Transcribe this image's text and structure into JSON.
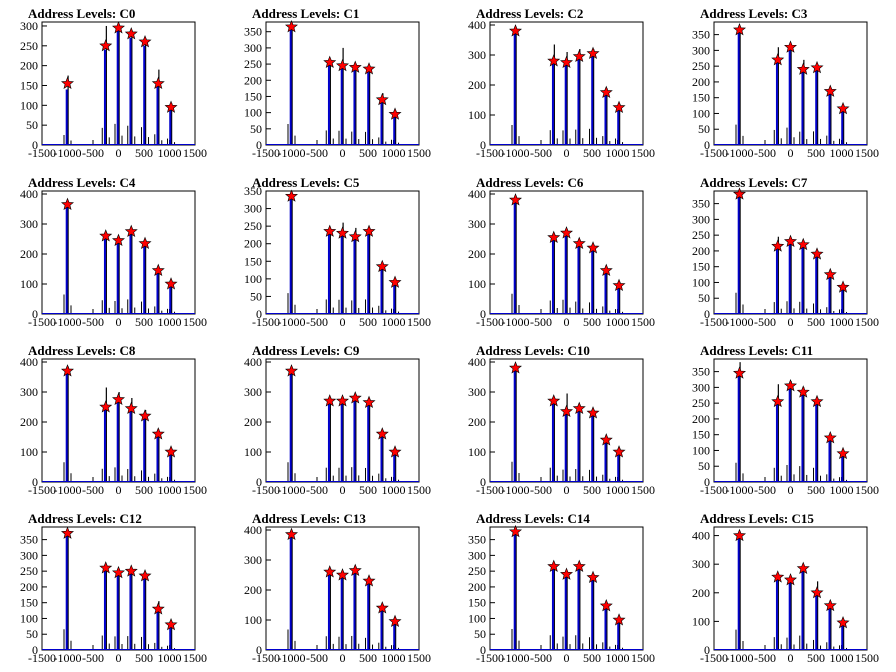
{
  "chart_data": [
    {
      "title": "Address Levels: C0",
      "type": "bar",
      "xlim": [
        -1500,
        1500
      ],
      "ylim": [
        0,
        310
      ],
      "yticks": [
        0,
        50,
        100,
        150,
        200,
        250,
        300
      ],
      "xticks": [
        -1500,
        -1000,
        -500,
        0,
        500,
        1000,
        1500
      ],
      "peaks": [
        {
          "x": -1000,
          "y": 155
        },
        {
          "x": -250,
          "y": 250
        },
        {
          "x": 0,
          "y": 295
        },
        {
          "x": 250,
          "y": 280
        },
        {
          "x": 520,
          "y": 260
        },
        {
          "x": 780,
          "y": 155
        },
        {
          "x": 1030,
          "y": 95
        }
      ],
      "series": [
        {
          "values": [
            175,
            300,
            300,
            285,
            270,
            190,
            105
          ]
        },
        {
          "values": [
            140,
            240,
            295,
            270,
            250,
            150,
            90
          ]
        }
      ]
    },
    {
      "title": "Address Levels: C1",
      "type": "bar",
      "xlim": [
        -1500,
        1500
      ],
      "ylim": [
        0,
        380
      ],
      "yticks": [
        0,
        50,
        100,
        150,
        200,
        250,
        300,
        350
      ],
      "xticks": [
        -1500,
        -1000,
        -500,
        0,
        500,
        1000,
        1500
      ],
      "peaks": [
        {
          "x": -1000,
          "y": 365
        },
        {
          "x": -250,
          "y": 255
        },
        {
          "x": 0,
          "y": 245
        },
        {
          "x": 250,
          "y": 240
        },
        {
          "x": 520,
          "y": 235
        },
        {
          "x": 780,
          "y": 140
        },
        {
          "x": 1030,
          "y": 95
        }
      ],
      "series": [
        {
          "values": [
            370,
            265,
            300,
            250,
            245,
            160,
            105
          ]
        },
        {
          "values": [
            360,
            250,
            245,
            230,
            225,
            130,
            90
          ]
        }
      ]
    },
    {
      "title": "Address Levels: C2",
      "type": "bar",
      "xlim": [
        -1500,
        1500
      ],
      "ylim": [
        0,
        410
      ],
      "yticks": [
        0,
        100,
        200,
        300,
        400
      ],
      "xticks": [
        -1500,
        -1000,
        -500,
        0,
        500,
        1000,
        1500
      ],
      "peaks": [
        {
          "x": -1000,
          "y": 380
        },
        {
          "x": -250,
          "y": 280
        },
        {
          "x": 0,
          "y": 275
        },
        {
          "x": 250,
          "y": 295
        },
        {
          "x": 520,
          "y": 305
        },
        {
          "x": 780,
          "y": 175
        },
        {
          "x": 1030,
          "y": 125
        }
      ],
      "series": [
        {
          "values": [
            390,
            335,
            310,
            320,
            320,
            190,
            135
          ]
        },
        {
          "values": [
            370,
            275,
            270,
            285,
            300,
            165,
            120
          ]
        }
      ]
    },
    {
      "title": "Address Levels: C3",
      "type": "bar",
      "xlim": [
        -1500,
        1500
      ],
      "ylim": [
        0,
        390
      ],
      "yticks": [
        0,
        50,
        100,
        150,
        200,
        250,
        300,
        350
      ],
      "xticks": [
        -1500,
        -1000,
        -500,
        0,
        500,
        1000,
        1500
      ],
      "peaks": [
        {
          "x": -1000,
          "y": 365
        },
        {
          "x": -250,
          "y": 270
        },
        {
          "x": 0,
          "y": 310
        },
        {
          "x": 250,
          "y": 240
        },
        {
          "x": 520,
          "y": 245
        },
        {
          "x": 780,
          "y": 170
        },
        {
          "x": 1030,
          "y": 115
        }
      ],
      "series": [
        {
          "values": [
            375,
            310,
            320,
            270,
            255,
            180,
            125
          ]
        },
        {
          "values": [
            360,
            265,
            305,
            235,
            240,
            165,
            110
          ]
        }
      ]
    },
    {
      "title": "Address Levels: C4",
      "type": "bar",
      "xlim": [
        -1500,
        1500
      ],
      "ylim": [
        0,
        410
      ],
      "yticks": [
        0,
        100,
        200,
        300,
        400
      ],
      "xticks": [
        -1500,
        -1000,
        -500,
        0,
        500,
        1000,
        1500
      ],
      "peaks": [
        {
          "x": -1000,
          "y": 365
        },
        {
          "x": -250,
          "y": 260
        },
        {
          "x": 0,
          "y": 245
        },
        {
          "x": 250,
          "y": 275
        },
        {
          "x": 520,
          "y": 235
        },
        {
          "x": 780,
          "y": 145
        },
        {
          "x": 1030,
          "y": 100
        }
      ],
      "series": [
        {
          "values": [
            375,
            270,
            255,
            285,
            245,
            155,
            110
          ]
        },
        {
          "values": [
            360,
            255,
            240,
            270,
            230,
            140,
            95
          ]
        }
      ]
    },
    {
      "title": "Address Levels: C5",
      "type": "bar",
      "xlim": [
        -1500,
        1500
      ],
      "ylim": [
        0,
        350
      ],
      "yticks": [
        0,
        50,
        100,
        150,
        200,
        250,
        300,
        350
      ],
      "xticks": [
        -1500,
        -1000,
        -500,
        0,
        500,
        1000,
        1500
      ],
      "peaks": [
        {
          "x": -1000,
          "y": 335
        },
        {
          "x": -250,
          "y": 235
        },
        {
          "x": 0,
          "y": 230
        },
        {
          "x": 250,
          "y": 220
        },
        {
          "x": 520,
          "y": 235
        },
        {
          "x": 780,
          "y": 135
        },
        {
          "x": 1030,
          "y": 90
        }
      ],
      "series": [
        {
          "values": [
            345,
            245,
            260,
            245,
            245,
            145,
            100
          ]
        },
        {
          "values": [
            330,
            230,
            225,
            215,
            230,
            130,
            85
          ]
        }
      ]
    },
    {
      "title": "Address Levels: C6",
      "type": "bar",
      "xlim": [
        -1500,
        1500
      ],
      "ylim": [
        0,
        410
      ],
      "yticks": [
        0,
        100,
        200,
        300,
        400
      ],
      "xticks": [
        -1500,
        -1000,
        -500,
        0,
        500,
        1000,
        1500
      ],
      "peaks": [
        {
          "x": -1000,
          "y": 380
        },
        {
          "x": -250,
          "y": 255
        },
        {
          "x": 0,
          "y": 270
        },
        {
          "x": 250,
          "y": 235
        },
        {
          "x": 520,
          "y": 220
        },
        {
          "x": 780,
          "y": 145
        },
        {
          "x": 1030,
          "y": 95
        }
      ],
      "series": [
        {
          "values": [
            385,
            265,
            280,
            245,
            230,
            155,
            105
          ]
        },
        {
          "values": [
            375,
            250,
            265,
            230,
            215,
            140,
            90
          ]
        }
      ]
    },
    {
      "title": "Address Levels: C7",
      "type": "bar",
      "xlim": [
        -1500,
        1500
      ],
      "ylim": [
        0,
        390
      ],
      "yticks": [
        0,
        50,
        100,
        150,
        200,
        250,
        300,
        350
      ],
      "xticks": [
        -1500,
        -1000,
        -500,
        0,
        500,
        1000,
        1500
      ],
      "peaks": [
        {
          "x": -1000,
          "y": 380
        },
        {
          "x": -250,
          "y": 215
        },
        {
          "x": 0,
          "y": 230
        },
        {
          "x": 250,
          "y": 220
        },
        {
          "x": 520,
          "y": 190
        },
        {
          "x": 780,
          "y": 125
        },
        {
          "x": 1030,
          "y": 85
        }
      ],
      "series": [
        {
          "values": [
            385,
            245,
            240,
            225,
            200,
            135,
            95
          ]
        },
        {
          "values": [
            375,
            210,
            225,
            215,
            185,
            120,
            80
          ]
        }
      ]
    },
    {
      "title": "Address Levels: C8",
      "type": "bar",
      "xlim": [
        -1500,
        1500
      ],
      "ylim": [
        0,
        410
      ],
      "yticks": [
        0,
        100,
        200,
        300,
        400
      ],
      "xticks": [
        -1500,
        -1000,
        -500,
        0,
        500,
        1000,
        1500
      ],
      "peaks": [
        {
          "x": -1000,
          "y": 370
        },
        {
          "x": -250,
          "y": 250
        },
        {
          "x": 0,
          "y": 275
        },
        {
          "x": 250,
          "y": 245
        },
        {
          "x": 520,
          "y": 220
        },
        {
          "x": 780,
          "y": 160
        },
        {
          "x": 1030,
          "y": 100
        }
      ],
      "series": [
        {
          "values": [
            385,
            315,
            300,
            280,
            240,
            175,
            110
          ]
        },
        {
          "values": [
            365,
            245,
            270,
            240,
            215,
            155,
            95
          ]
        }
      ]
    },
    {
      "title": "Address Levels: C9",
      "type": "bar",
      "xlim": [
        -1500,
        1500
      ],
      "ylim": [
        0,
        410
      ],
      "yticks": [
        0,
        100,
        200,
        300,
        400
      ],
      "xticks": [
        -1500,
        -1000,
        -500,
        0,
        500,
        1000,
        1500
      ],
      "peaks": [
        {
          "x": -1000,
          "y": 370
        },
        {
          "x": -250,
          "y": 270
        },
        {
          "x": 0,
          "y": 270
        },
        {
          "x": 250,
          "y": 280
        },
        {
          "x": 520,
          "y": 265
        },
        {
          "x": 780,
          "y": 160
        },
        {
          "x": 1030,
          "y": 100
        }
      ],
      "series": [
        {
          "values": [
            375,
            280,
            280,
            290,
            275,
            170,
            110
          ]
        },
        {
          "values": [
            365,
            265,
            265,
            275,
            260,
            155,
            95
          ]
        }
      ]
    },
    {
      "title": "Address Levels: C10",
      "type": "bar",
      "xlim": [
        -1500,
        1500
      ],
      "ylim": [
        0,
        410
      ],
      "yticks": [
        0,
        100,
        200,
        300,
        400
      ],
      "xticks": [
        -1500,
        -1000,
        -500,
        0,
        500,
        1000,
        1500
      ],
      "peaks": [
        {
          "x": -1000,
          "y": 380
        },
        {
          "x": -250,
          "y": 270
        },
        {
          "x": 0,
          "y": 235
        },
        {
          "x": 250,
          "y": 245
        },
        {
          "x": 520,
          "y": 230
        },
        {
          "x": 780,
          "y": 140
        },
        {
          "x": 1030,
          "y": 100
        }
      ],
      "series": [
        {
          "values": [
            385,
            280,
            295,
            255,
            240,
            150,
            110
          ]
        },
        {
          "values": [
            375,
            265,
            230,
            240,
            225,
            135,
            95
          ]
        }
      ]
    },
    {
      "title": "Address Levels: C11",
      "type": "bar",
      "xlim": [
        -1500,
        1500
      ],
      "ylim": [
        0,
        390
      ],
      "yticks": [
        0,
        50,
        100,
        150,
        200,
        250,
        300,
        350
      ],
      "xticks": [
        -1500,
        -1000,
        -500,
        0,
        500,
        1000,
        1500
      ],
      "peaks": [
        {
          "x": -1000,
          "y": 345
        },
        {
          "x": -250,
          "y": 255
        },
        {
          "x": 0,
          "y": 305
        },
        {
          "x": 250,
          "y": 285
        },
        {
          "x": 520,
          "y": 255
        },
        {
          "x": 780,
          "y": 140
        },
        {
          "x": 1030,
          "y": 90
        }
      ],
      "series": [
        {
          "values": [
            380,
            310,
            320,
            300,
            265,
            150,
            100
          ]
        },
        {
          "values": [
            340,
            250,
            300,
            280,
            250,
            135,
            85
          ]
        }
      ]
    },
    {
      "title": "Address Levels: C12",
      "type": "bar",
      "xlim": [
        -1500,
        1500
      ],
      "ylim": [
        0,
        390
      ],
      "yticks": [
        0,
        50,
        100,
        150,
        200,
        250,
        300,
        350
      ],
      "xticks": [
        -1500,
        -1000,
        -500,
        0,
        500,
        1000,
        1500
      ],
      "peaks": [
        {
          "x": -1000,
          "y": 370
        },
        {
          "x": -250,
          "y": 260
        },
        {
          "x": 0,
          "y": 245
        },
        {
          "x": 250,
          "y": 250
        },
        {
          "x": 520,
          "y": 235
        },
        {
          "x": 780,
          "y": 130
        },
        {
          "x": 1030,
          "y": 80
        }
      ],
      "series": [
        {
          "values": [
            380,
            270,
            255,
            260,
            245,
            155,
            90
          ]
        },
        {
          "values": [
            365,
            255,
            240,
            245,
            230,
            125,
            75
          ]
        }
      ]
    },
    {
      "title": "Address Levels: C13",
      "type": "bar",
      "xlim": [
        -1500,
        1500
      ],
      "ylim": [
        0,
        410
      ],
      "yticks": [
        0,
        100,
        200,
        300,
        400
      ],
      "xticks": [
        -1500,
        -1000,
        -500,
        0,
        500,
        1000,
        1500
      ],
      "peaks": [
        {
          "x": -1000,
          "y": 385
        },
        {
          "x": -250,
          "y": 260
        },
        {
          "x": 0,
          "y": 250
        },
        {
          "x": 250,
          "y": 265
        },
        {
          "x": 520,
          "y": 230
        },
        {
          "x": 780,
          "y": 140
        },
        {
          "x": 1030,
          "y": 95
        }
      ],
      "series": [
        {
          "values": [
            390,
            270,
            260,
            275,
            240,
            150,
            105
          ]
        },
        {
          "values": [
            380,
            255,
            245,
            260,
            225,
            135,
            90
          ]
        }
      ]
    },
    {
      "title": "Address Levels: C14",
      "type": "bar",
      "xlim": [
        -1500,
        1500
      ],
      "ylim": [
        0,
        390
      ],
      "yticks": [
        0,
        50,
        100,
        150,
        200,
        250,
        300,
        350
      ],
      "xticks": [
        -1500,
        -1000,
        -500,
        0,
        500,
        1000,
        1500
      ],
      "peaks": [
        {
          "x": -1000,
          "y": 375
        },
        {
          "x": -250,
          "y": 265
        },
        {
          "x": 0,
          "y": 240
        },
        {
          "x": 250,
          "y": 265
        },
        {
          "x": 520,
          "y": 230
        },
        {
          "x": 780,
          "y": 140
        },
        {
          "x": 1030,
          "y": 95
        }
      ],
      "series": [
        {
          "values": [
            385,
            275,
            250,
            275,
            240,
            150,
            105
          ]
        },
        {
          "values": [
            370,
            260,
            235,
            260,
            225,
            135,
            90
          ]
        }
      ]
    },
    {
      "title": "Address Levels: C15",
      "type": "bar",
      "xlim": [
        -1500,
        1500
      ],
      "ylim": [
        0,
        430
      ],
      "yticks": [
        0,
        100,
        200,
        300,
        400
      ],
      "xticks": [
        -1500,
        -1000,
        -500,
        0,
        500,
        1000,
        1500
      ],
      "peaks": [
        {
          "x": -1000,
          "y": 400
        },
        {
          "x": -250,
          "y": 255
        },
        {
          "x": 0,
          "y": 245
        },
        {
          "x": 250,
          "y": 285
        },
        {
          "x": 520,
          "y": 200
        },
        {
          "x": 780,
          "y": 155
        },
        {
          "x": 1030,
          "y": 95
        }
      ],
      "series": [
        {
          "values": [
            410,
            265,
            255,
            295,
            240,
            170,
            105
          ]
        },
        {
          "values": [
            395,
            250,
            240,
            280,
            195,
            150,
            90
          ]
        }
      ]
    }
  ],
  "colors": {
    "bar_blue": "#0000cc",
    "bar_black": "#000000",
    "marker": "#ff0000",
    "axis": "#000000",
    "background": "#ffffff"
  }
}
